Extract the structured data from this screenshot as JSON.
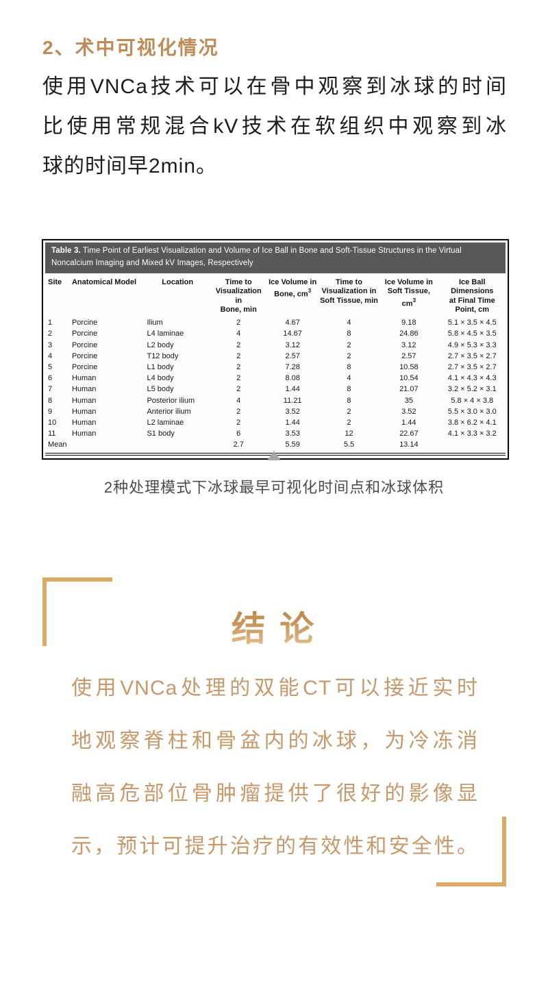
{
  "section_heading": "2、术中可视化情况",
  "intro": {
    "lines": [
      "使用VNCa技术可以在骨中观察到冰球的时间",
      "比使用常规混合kV技术在软组织中观察到冰",
      "球的时间早2min。"
    ]
  },
  "table": {
    "title_bold": "Table 3.",
    "title_rest": " Time Point of Earliest Visualization and Volume of Ice Ball in Bone and Soft-Tissue Structures in the Virtual Noncalcium Imaging and Mixed kV Images, Respectively",
    "columns": [
      "Site",
      "Anatomical Model",
      "Location",
      "Time to\nVisualization in\nBone, min",
      "Ice Volume in\nBone, cm^3",
      "Time to\nVisualization in\nSoft Tissue, min",
      "Ice Volume in\nSoft Tissue, cm^3",
      "Ice Ball Dimensions\nat Final Time\nPoint, cm"
    ],
    "rows": [
      [
        "1",
        "Porcine",
        "Ilium",
        "2",
        "4.67",
        "4",
        "9.18",
        "5.1 × 3.5 × 4.5"
      ],
      [
        "2",
        "Porcine",
        "L4 laminae",
        "4",
        "14.67",
        "8",
        "24.86",
        "5.8 × 4.5 × 3.5"
      ],
      [
        "3",
        "Porcine",
        "L2 body",
        "2",
        "3.12",
        "2",
        "3.12",
        "4.9 × 5.3 × 3.3"
      ],
      [
        "4",
        "Porcine",
        "T12 body",
        "2",
        "2.57",
        "2",
        "2.57",
        "2.7 × 3.5 × 2.7"
      ],
      [
        "5",
        "Porcine",
        "L1 body",
        "2",
        "7.28",
        "8",
        "10.58",
        "2.7 × 3.5 × 2.7"
      ],
      [
        "6",
        "Human",
        "L4 body",
        "2",
        "8.08",
        "4",
        "10.54",
        "4.1 × 4.3 × 4.3"
      ],
      [
        "7",
        "Human",
        "L5 body",
        "2",
        "1.44",
        "8",
        "21.07",
        "3.2 × 5.2 × 3.1"
      ],
      [
        "8",
        "Human",
        "Posterior ilium",
        "4",
        "11.21",
        "8",
        "35",
        "5.8 × 4 × 3.8"
      ],
      [
        "9",
        "Human",
        "Anterior ilium",
        "2",
        "3.52",
        "2",
        "3.52",
        "5.5 × 3.0 × 3.0"
      ],
      [
        "10",
        "Human",
        "L2 laminae",
        "2",
        "1.44",
        "2",
        "1.44",
        "3.8 × 6.2 × 4.1"
      ],
      [
        "11",
        "Human",
        "S1 body",
        "6",
        "3.53",
        "12",
        "22.67",
        "4.1 × 3.3 × 3.2"
      ]
    ],
    "mean_row": [
      "Mean",
      "",
      "",
      "2.7",
      "5.59",
      "5.5",
      "13.14",
      ""
    ]
  },
  "collapse_arrow_icon": "triangle-up",
  "caption": "2种处理模式下冰球最早可视化时间点和冰球体积",
  "conclusion": {
    "title": "结 论",
    "lines": [
      "使用VNCa处理的双能CT可以接近实时",
      "地观察脊柱和骨盆内的冰球，为冷冻消",
      "融高危部位骨肿瘤提供了很好的影像显",
      "示，预计可提升治疗的有效性和安全性。"
    ]
  },
  "colors": {
    "accent_gold": "#BF8B57",
    "conclusion_text_gold": "#C6986A",
    "bracket_gold": "#DCAB63",
    "table_titlebar_bg": "#58585B",
    "caption_gray": "#4C4C4C",
    "arrow_gray": "#A6A6A6"
  }
}
